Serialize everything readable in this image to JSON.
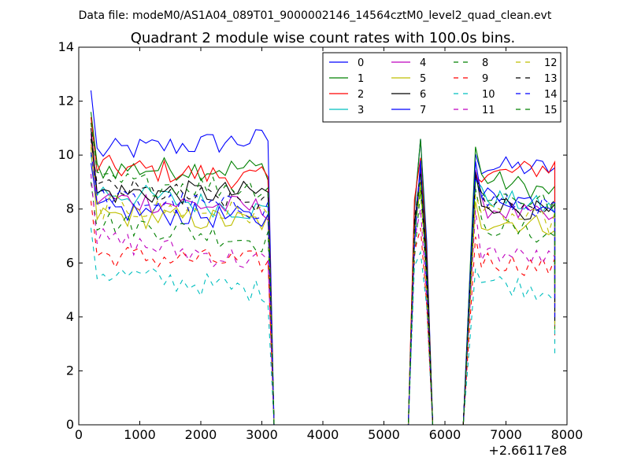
{
  "chart_data": {
    "type": "line",
    "suptitle": "Data file: modeM0/AS1A04_089T01_9000002146_14564cztM0_level2_quad_clean.evt",
    "title": "Quadrant 2 module wise count rates with 100.0s bins.",
    "xlabel": "",
    "ylabel": "",
    "x_offset_label": "+2.66117e8",
    "xlim": [
      0,
      8000
    ],
    "ylim": [
      0,
      14
    ],
    "xticks": [
      0,
      1000,
      2000,
      3000,
      4000,
      5000,
      6000,
      7000,
      8000
    ],
    "yticks": [
      0,
      2,
      4,
      6,
      8,
      10,
      12,
      14
    ],
    "legend_position": "top-right",
    "segments": [
      {
        "x_start": 200,
        "x_end": 3100,
        "step": 100
      },
      {
        "x_start": 5400,
        "x_end": 5700,
        "step": 100
      },
      {
        "x_start": 6300,
        "x_end": 7800,
        "step": 100
      }
    ],
    "zero_drop_after": 100,
    "series": [
      {
        "name": "0",
        "color": "#0000ff",
        "dash": "solid",
        "levels": [
          12.4,
          10.1,
          10.6,
          5.0,
          10.6,
          9.6,
          9.5
        ]
      },
      {
        "name": "1",
        "color": "#008000",
        "dash": "solid",
        "levels": [
          11.6,
          9.5,
          9.5,
          5.0,
          10.6,
          9.3,
          8.6
        ]
      },
      {
        "name": "2",
        "color": "#ff0000",
        "dash": "solid",
        "levels": [
          11.4,
          9.6,
          9.1,
          5.0,
          9.9,
          9.1,
          9.6
        ]
      },
      {
        "name": "3",
        "color": "#00bfbf",
        "dash": "solid",
        "levels": [
          10.0,
          8.7,
          7.9,
          4.2,
          9.4,
          8.6,
          8.0
        ]
      },
      {
        "name": "4",
        "color": "#bf00bf",
        "dash": "solid",
        "levels": [
          10.8,
          8.4,
          8.0,
          4.0,
          9.4,
          8.2,
          7.6
        ]
      },
      {
        "name": "5",
        "color": "#bfbf00",
        "dash": "solid",
        "levels": [
          10.3,
          7.8,
          7.5,
          3.8,
          8.8,
          7.6,
          7.4
        ]
      },
      {
        "name": "6",
        "color": "#000000",
        "dash": "solid",
        "levels": [
          11.0,
          8.6,
          8.6,
          4.4,
          9.5,
          8.4,
          7.8
        ]
      },
      {
        "name": "7",
        "color": "#0000ff",
        "dash": "solid",
        "levels": [
          9.7,
          8.0,
          7.6,
          4.1,
          9.8,
          8.6,
          8.2
        ]
      },
      {
        "name": "8",
        "color": "#008000",
        "dash": "dashed",
        "levels": [
          9.0,
          7.6,
          6.8,
          3.6,
          8.7,
          7.5,
          7.0
        ]
      },
      {
        "name": "9",
        "color": "#ff0000",
        "dash": "dashed",
        "levels": [
          8.3,
          6.3,
          6.0,
          3.2,
          7.3,
          6.2,
          5.8
        ]
      },
      {
        "name": "10",
        "color": "#00bfbf",
        "dash": "dashed",
        "levels": [
          7.3,
          5.7,
          4.9,
          3.0,
          6.4,
          5.5,
          4.9
        ]
      },
      {
        "name": "11",
        "color": "#bf00bf",
        "dash": "dashed",
        "levels": [
          9.3,
          6.9,
          6.0,
          3.5,
          8.0,
          6.5,
          6.1
        ]
      },
      {
        "name": "12",
        "color": "#bfbf00",
        "dash": "dashed",
        "levels": [
          10.4,
          8.1,
          7.8,
          3.9,
          9.0,
          7.9,
          7.5
        ]
      },
      {
        "name": "13",
        "color": "#000000",
        "dash": "dashed",
        "levels": [
          10.6,
          8.8,
          8.2,
          4.2,
          9.3,
          8.5,
          8.0
        ]
      },
      {
        "name": "14",
        "color": "#0000ff",
        "dash": "dashed",
        "levels": [
          10.1,
          8.4,
          8.0,
          4.0,
          9.6,
          8.4,
          8.0
        ]
      },
      {
        "name": "15",
        "color": "#008000",
        "dash": "dashed",
        "levels": [
          11.2,
          9.0,
          8.8,
          4.3,
          9.2,
          8.7,
          8.2
        ]
      }
    ]
  }
}
